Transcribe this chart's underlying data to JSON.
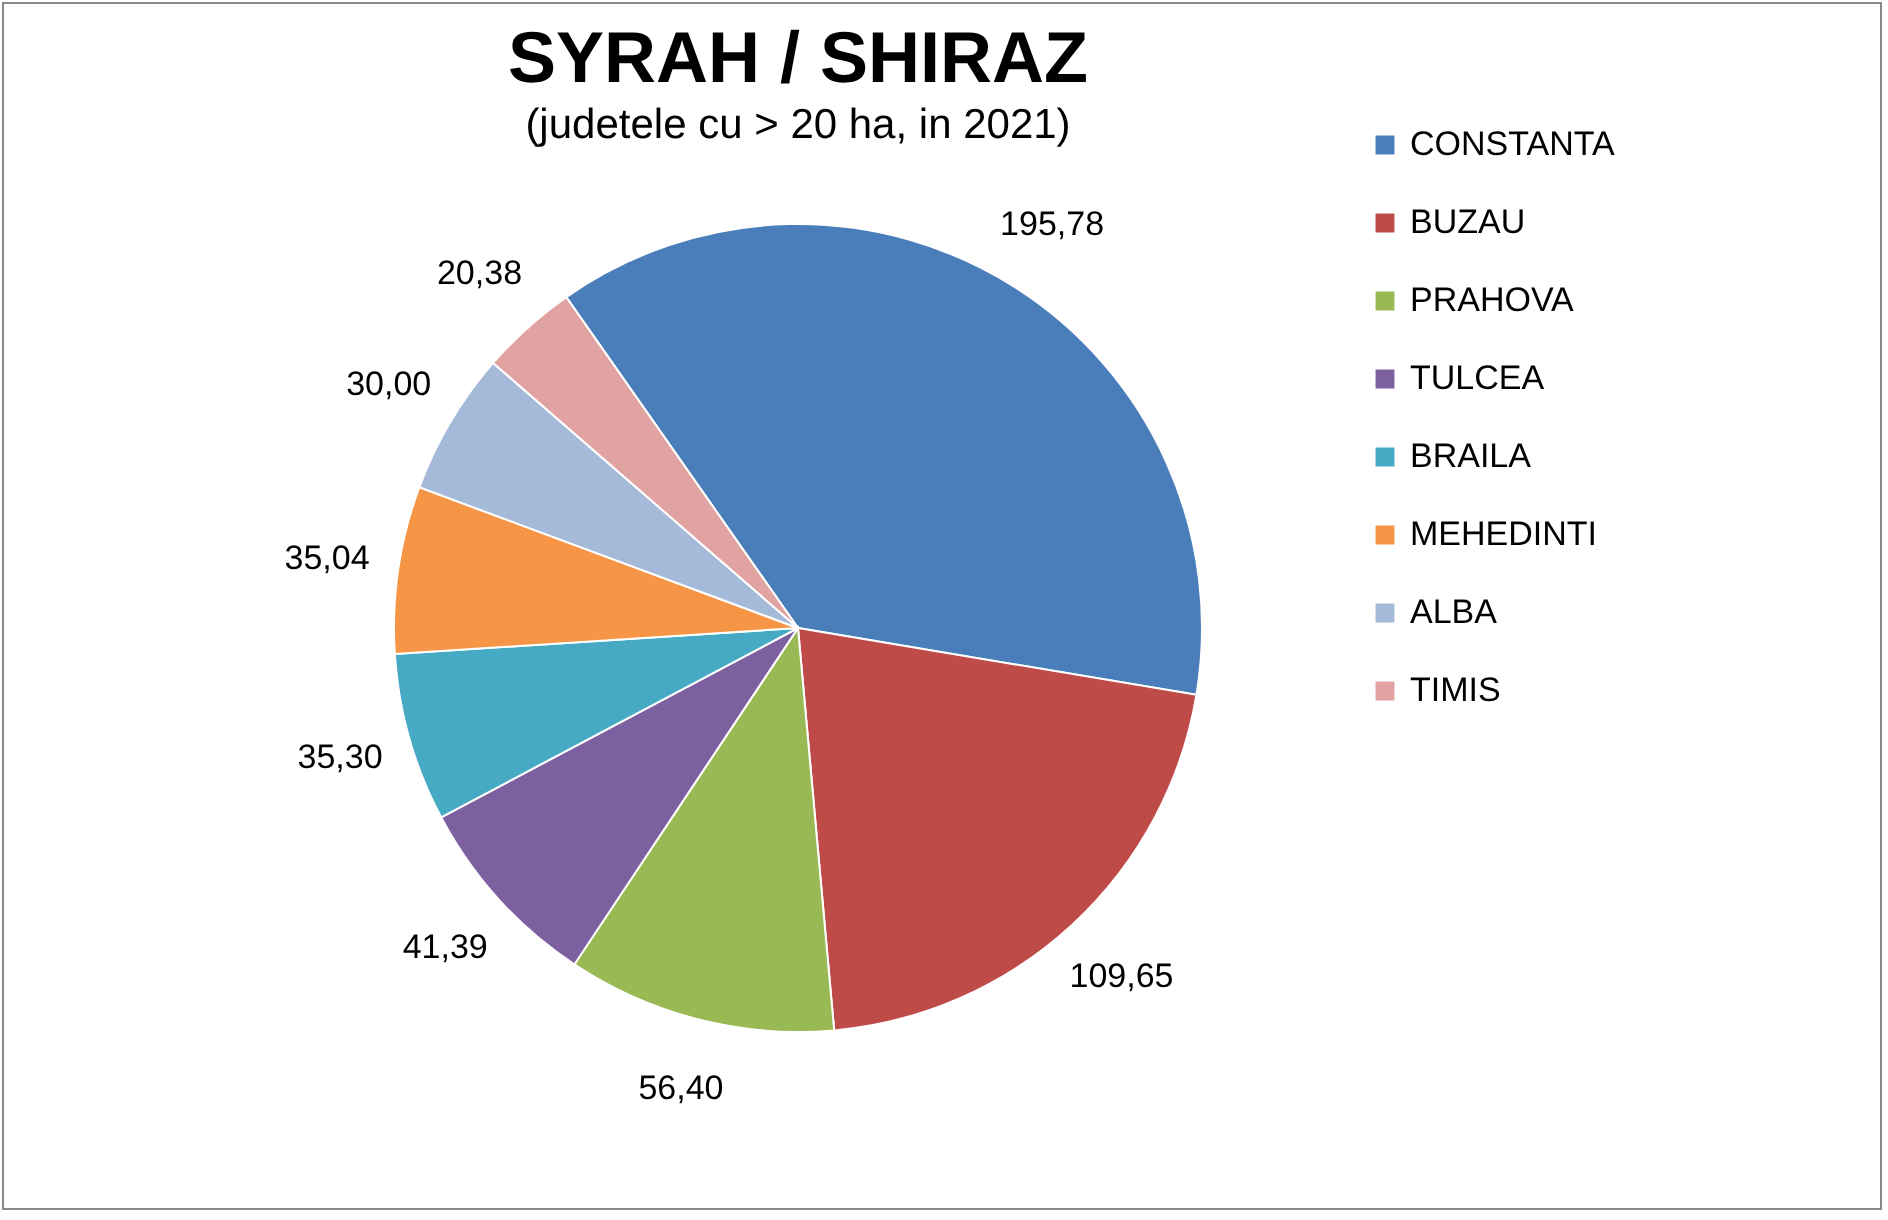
{
  "chart_data": {
    "type": "pie",
    "title": "SYRAH / SHIRAZ",
    "subtitle": "(judetele cu  > 20 ha, in 2021)",
    "categories": [
      "CONSTANTA",
      "BUZAU",
      "PRAHOVA",
      "TULCEA",
      "BRAILA",
      "MEHEDINTI",
      "ALBA",
      "TIMIS"
    ],
    "values": [
      195.78,
      109.65,
      56.4,
      41.39,
      35.3,
      35.04,
      30.0,
      20.38
    ],
    "value_labels": [
      "195,78",
      "109,65",
      "56,40",
      "41,39",
      "35,30",
      "35,04",
      "30,00",
      "20,38"
    ],
    "colors": [
      "#4a7ebb",
      "#be4b48",
      "#98b954",
      "#7d60a0",
      "#46aac5",
      "#f69545",
      "#a5b9d9",
      "#e0a3a1"
    ],
    "legend": "right"
  }
}
